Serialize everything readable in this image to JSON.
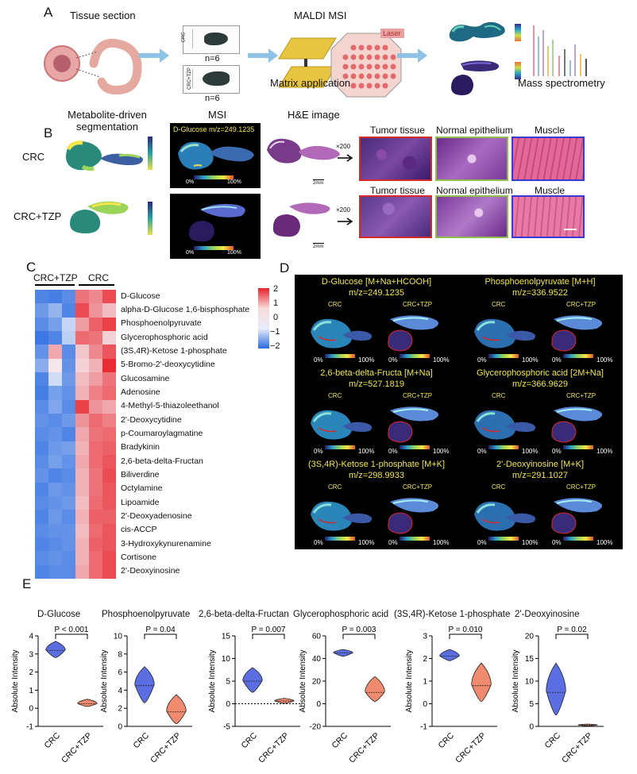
{
  "panels": {
    "A": "A",
    "B": "B",
    "C": "C",
    "D": "D",
    "E": "E"
  },
  "panelA": {
    "tissue_section": "Tissue section",
    "maldi_msi": "MALDI MSI",
    "n1": "n=6",
    "n2": "n=6",
    "crc_tag": "CRC",
    "crctzp_tag": "CRC+TZP",
    "laser": "Laser",
    "matrix_application": "Matrix application",
    "mass_spectrometry": "Mass spectrometry"
  },
  "panelB": {
    "col_seg": "Metabolite-driven segmentation",
    "col_msi": "MSI",
    "col_he": "H&E image",
    "row1": "CRC",
    "row2": "CRC+TZP",
    "msi_title": "D-Glucose m/z=249.1235",
    "pct0": "0%",
    "pct100": "100%",
    "scale": "2mm",
    "zoom": "×200",
    "tumor": "Tumor tissue",
    "normal": "Normal epithelium",
    "muscle": "Muscle"
  },
  "panelC": {
    "group1": "CRC+TZP",
    "group2": "CRC",
    "legend_ticks": [
      "2",
      "1",
      "0",
      "−1",
      "−2"
    ],
    "metabolites": [
      "D-Glucose",
      "alpha-D-Glucose 1,6-bisphosphate",
      "Phosphoenolpyruvate",
      "Glycerophosphoric acid",
      "(3S,4R)-Ketose 1-phosphate",
      "5-Bromo-2'-deoxycytidine",
      "Glucosamine",
      "Adenosine",
      "4-Methyl-5-thiazoleethanol",
      "2'-Deoxycytidine",
      "p-Coumaroylagmatine",
      "Bradykinin",
      "2,6-beta-delta-Fructan",
      "Biliverdine",
      "Octylamine",
      "Lipoamide",
      "2'-Deoxyadenosine",
      "cis-ACCP",
      "3-Hydroxykynurenamine",
      "Cortisone",
      "2'-Deoxyinosine"
    ],
    "values": [
      [
        -1.6,
        -1.7,
        -1.5,
        1.2,
        1.0,
        1.6
      ],
      [
        -1.3,
        -0.9,
        -1.6,
        1.6,
        0.9,
        0.5
      ],
      [
        -1.5,
        -1.2,
        -0.4,
        0.8,
        1.4,
        1.7
      ],
      [
        -1.8,
        -1.6,
        -0.5,
        1.3,
        1.2,
        0.3
      ],
      [
        -1.4,
        0.7,
        -1.5,
        0.4,
        1.0,
        1.5
      ],
      [
        -1.0,
        0.1,
        -1.4,
        0.3,
        0.6,
        1.9
      ],
      [
        -1.6,
        -0.3,
        -1.3,
        0.5,
        0.8,
        1.2
      ],
      [
        -1.7,
        -1.2,
        -1.4,
        0.6,
        1.1,
        1.3
      ],
      [
        -1.5,
        -1.1,
        -1.5,
        1.7,
        0.9,
        0.7
      ],
      [
        -1.4,
        -1.5,
        -1.3,
        0.9,
        1.3,
        1.1
      ],
      [
        -1.5,
        -1.4,
        -1.6,
        0.7,
        1.2,
        1.3
      ],
      [
        -1.6,
        -1.3,
        -1.2,
        0.6,
        1.3,
        1.4
      ],
      [
        -1.5,
        -1.2,
        -1.4,
        0.7,
        1.3,
        1.5
      ],
      [
        -1.4,
        -1.6,
        -1.5,
        0.6,
        1.2,
        1.6
      ],
      [
        -1.6,
        -1.3,
        -1.4,
        0.6,
        1.2,
        1.5
      ],
      [
        -1.5,
        -1.4,
        -1.3,
        0.5,
        1.3,
        1.5
      ],
      [
        -1.6,
        -1.3,
        -1.5,
        0.6,
        1.4,
        1.4
      ],
      [
        -1.5,
        -1.4,
        -1.4,
        0.5,
        1.3,
        1.5
      ],
      [
        -1.6,
        -1.5,
        -1.4,
        0.6,
        1.4,
        1.5
      ],
      [
        -1.5,
        -1.4,
        -1.5,
        0.6,
        1.3,
        1.6
      ],
      [
        -1.6,
        -1.5,
        -1.5,
        0.7,
        1.3,
        1.6
      ]
    ]
  },
  "panelD": {
    "tiles": [
      {
        "t1": "D-Glucose [M+Na+HCOOH]",
        "t2": "m/z=249.1235"
      },
      {
        "t1": "Phosphoenolpyruvate [M+H]",
        "t2": "m/z=336.9522"
      },
      {
        "t1": "2,6-beta-delta-Fructa [M+Na]",
        "t2": "m/z=527.1819"
      },
      {
        "t1": "Glycerophosphoric acid [2M+Na]",
        "t2": "m/z=366.9629"
      },
      {
        "t1": "(3S,4R)-Ketose 1-phosphate [M+K]",
        "t2": "m/z=298.9933"
      },
      {
        "t1": "2'-Deoxyinosine [M+K]",
        "t2": "m/z=291.1027"
      }
    ],
    "crc": "CRC",
    "crctzp": "CRC+TZP",
    "pct0": "0%",
    "pct100": "100%"
  },
  "panelE": {
    "ylabel": "Absolute Intensity",
    "xcats": [
      "CRC",
      "CRC+TZP"
    ],
    "colors": {
      "crc": "#5b6ee1",
      "tzp": "#f08a6e"
    },
    "plots": [
      {
        "title": "D-Glucose",
        "p": "P < 0.001",
        "yticks": [
          "4",
          "3",
          "2",
          "1",
          "0",
          "-1"
        ],
        "ymin": -1,
        "ymax": 4,
        "crc": {
          "min": 2.8,
          "max": 3.7,
          "med": 3.2
        },
        "tzp": {
          "min": 0.1,
          "max": 0.5,
          "med": 0.25
        },
        "dotted": false
      },
      {
        "title": "Phosphoenolpyruvate",
        "p": "P = 0.04",
        "yticks": [
          "10",
          "8",
          "6",
          "4",
          "2",
          "0"
        ],
        "ymin": 0,
        "ymax": 10,
        "crc": {
          "min": 2.6,
          "max": 6.6,
          "med": 4.5
        },
        "tzp": {
          "min": 0.3,
          "max": 3.5,
          "med": 1.6
        },
        "dotted": false
      },
      {
        "title": "2,6-beta-delta-Fructan",
        "p": "P = 0.007",
        "yticks": [
          "15",
          "10",
          "5",
          "0",
          "-5"
        ],
        "ymin": -5,
        "ymax": 15,
        "crc": {
          "min": 2.5,
          "max": 8.0,
          "med": 5.0
        },
        "tzp": {
          "min": 0.1,
          "max": 1.2,
          "med": 0.6
        },
        "dotted": true
      },
      {
        "title": "Glycerophosphoric acid",
        "p": "P = 0.003",
        "yticks": [
          "60",
          "40",
          "20",
          "0",
          "-20"
        ],
        "ymin": -20,
        "ymax": 60,
        "crc": {
          "min": 42,
          "max": 48,
          "med": 45
        },
        "tzp": {
          "min": 2,
          "max": 24,
          "med": 10
        },
        "dotted": false
      },
      {
        "title": "(3S,4R)-Ketose 1-phosphate",
        "p": "P = 0.010",
        "yticks": [
          "3",
          "2",
          "1",
          "0",
          "-1"
        ],
        "ymin": -1,
        "ymax": 3,
        "crc": {
          "min": 1.9,
          "max": 2.4,
          "med": 2.1
        },
        "tzp": {
          "min": 0.1,
          "max": 1.8,
          "med": 0.8
        },
        "dotted": false
      },
      {
        "title": "2'-Deoxyinosine",
        "p": "P = 0.02",
        "yticks": [
          "20",
          "15",
          "10",
          "5",
          "0"
        ],
        "ymin": 0,
        "ymax": 20,
        "crc": {
          "min": 2.5,
          "max": 14,
          "med": 7.5
        },
        "tzp": {
          "min": 0.1,
          "max": 0.5,
          "med": 0.3
        },
        "dotted": false
      }
    ]
  }
}
